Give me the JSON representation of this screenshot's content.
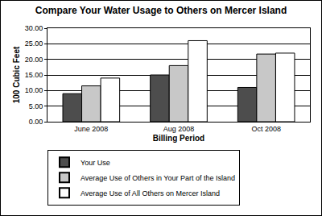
{
  "chart_data": {
    "type": "bar",
    "title": "Compare Your Water Usage to Others on Mercer Island",
    "x_label": "Billing Period",
    "y_label": "100 Cubic Feet",
    "categories": [
      "June 2008",
      "Aug 2008",
      "Oct 2008"
    ],
    "series": [
      {
        "name": "Your Use",
        "color": "#4d4d4d",
        "values": [
          9,
          15,
          11
        ]
      },
      {
        "name": "Average Use of Others in Your Part of the Island",
        "color": "#c8c8c8",
        "values": [
          11.5,
          18,
          21.7
        ]
      },
      {
        "name": "Average Use of All Others on Mercer Island",
        "color": "#ffffff",
        "values": [
          14,
          26,
          22
        ]
      }
    ],
    "ylim": [
      0,
      30
    ],
    "yticks": [
      {
        "value": 0,
        "label": "0.00"
      },
      {
        "value": 5,
        "label": "5.00"
      },
      {
        "value": 10,
        "label": "10.00"
      },
      {
        "value": 15,
        "label": "15.00"
      },
      {
        "value": 20,
        "label": "20.00"
      },
      {
        "value": 25,
        "label": "25.00"
      },
      {
        "value": 30,
        "label": "30.00"
      }
    ],
    "grid": true,
    "legend": "bottom"
  }
}
